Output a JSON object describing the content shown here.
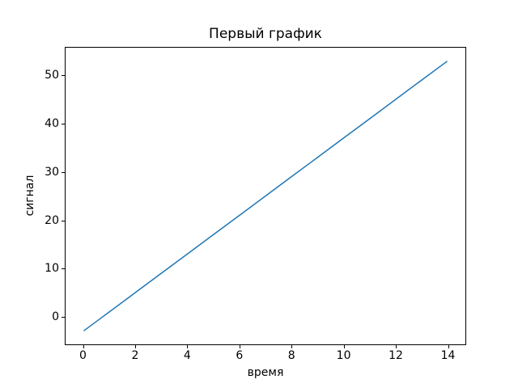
{
  "figure": {
    "background": "#ffffff",
    "text_color": "#000000",
    "spine_color": "#000000"
  },
  "chart_data": {
    "type": "line",
    "title": "Первый график",
    "xlabel": "время",
    "ylabel": "сигнал",
    "x": [
      0,
      1,
      2,
      3,
      4,
      5,
      6,
      7,
      8,
      9,
      10,
      11,
      12,
      13,
      14
    ],
    "y": [
      -3,
      1,
      5,
      9,
      13,
      17,
      21,
      25,
      29,
      33,
      37,
      41,
      45,
      49,
      53
    ],
    "xlim": [
      -0.7,
      14.7
    ],
    "ylim": [
      -5.8,
      55.8
    ],
    "xticks": [
      0,
      2,
      4,
      6,
      8,
      10,
      12,
      14
    ],
    "yticks": [
      0,
      10,
      20,
      30,
      40,
      50
    ],
    "line_color": "#1f77b4",
    "line_width": 1.5,
    "grid": false,
    "legend_position": null
  }
}
